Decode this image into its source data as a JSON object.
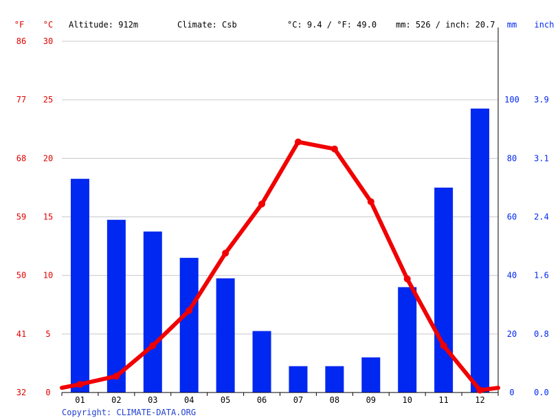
{
  "header": {
    "unit_f": "°F",
    "unit_c": "°C",
    "altitude": "Altitude: 912m",
    "climate": "Climate: Csb",
    "averages_temp": "°C: 9.4 / °F: 49.0",
    "averages_precip": "mm: 526 / inch: 20.7",
    "unit_mm": "mm",
    "unit_inch": "inch"
  },
  "copyright": "Copyright: CLIMATE-DATA.ORG",
  "chart_data": {
    "type": "bar",
    "categories": [
      "01",
      "02",
      "03",
      "04",
      "05",
      "06",
      "07",
      "08",
      "09",
      "10",
      "11",
      "12"
    ],
    "series": [
      {
        "type": "bar",
        "axis": "right",
        "unit": "mm",
        "color": "#0028f0",
        "values": [
          73,
          59,
          55,
          46,
          39,
          21,
          9,
          9,
          12,
          36,
          70,
          97
        ]
      },
      {
        "type": "line",
        "axis": "left",
        "unit": "°C",
        "color": "#f00000",
        "values": [
          0.7,
          1.4,
          4.0,
          7.0,
          11.9,
          16.1,
          21.4,
          20.8,
          16.3,
          9.7,
          4.0,
          0.2
        ]
      }
    ],
    "line_edge_values": {
      "start": 0.4,
      "end": 0.4
    },
    "ylim_left": [
      0,
      30
    ],
    "ylim_right": [
      0,
      120
    ],
    "left_ticks_c": [
      "0",
      "5",
      "10",
      "15",
      "20",
      "25",
      "30"
    ],
    "left_ticks_f": [
      "32",
      "41",
      "50",
      "59",
      "68",
      "77",
      "86"
    ],
    "right_ticks_mm": [
      "0",
      "20",
      "40",
      "60",
      "80",
      "100"
    ],
    "right_ticks_inch": [
      "0.0",
      "0.8",
      "1.6",
      "2.4",
      "3.1",
      "3.9"
    ],
    "grid": true
  }
}
